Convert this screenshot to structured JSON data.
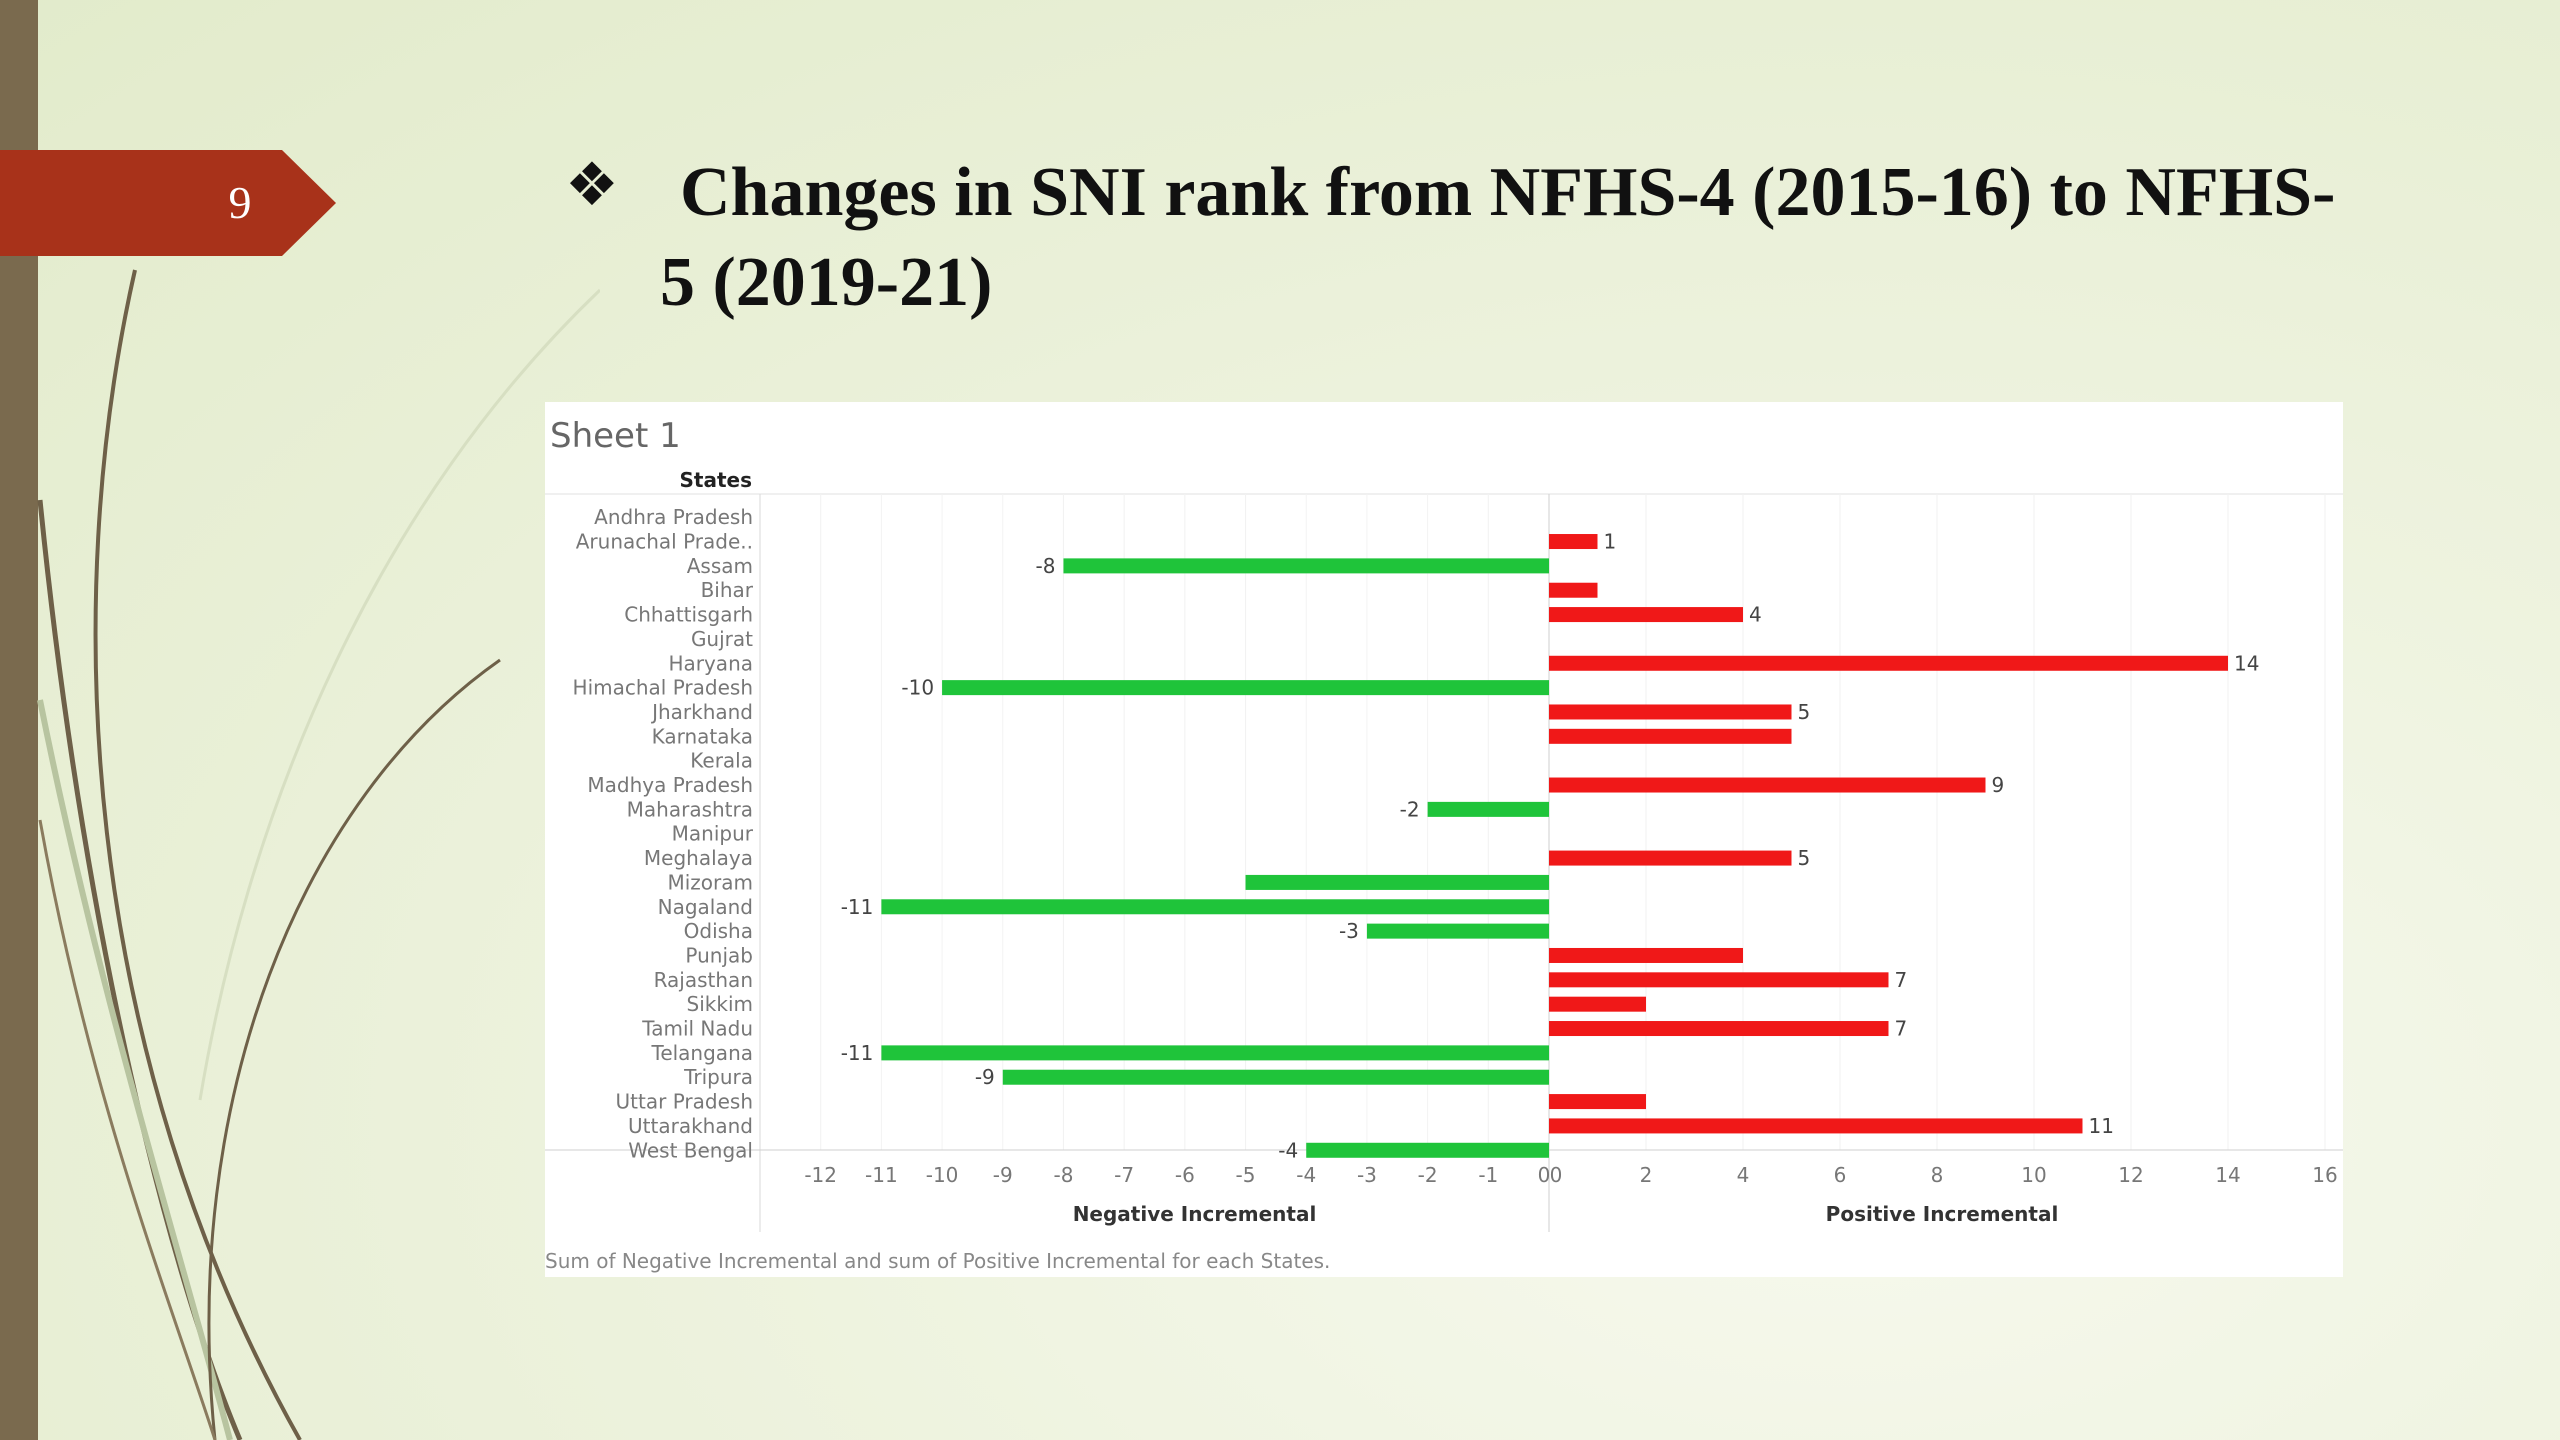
{
  "slide": {
    "page_number": "9",
    "bullet_icon": "four-diamond-bullet-icon",
    "bullet_glyph": "❖",
    "title": "Changes in SNI rank from NFHS-4 (2015-16) to NFHS-5 (2019-21)",
    "colors": {
      "badge": "#a8321a",
      "left_bar": "#7a6a4e"
    }
  },
  "chart_data": {
    "type": "bar",
    "orientation": "horizontal",
    "sheet_title": "Sheet 1",
    "row_header": "States",
    "caption": "Sum of Negative Incremental and sum of Positive Incremental for each States.",
    "categories": [
      "Andhra Pradesh",
      "Arunachal Prade..",
      "Assam",
      "Bihar",
      "Chhattisgarh",
      "Gujrat",
      "Haryana",
      "Himachal Pradesh",
      "Jharkhand",
      "Karnataka",
      "Kerala",
      "Madhya Pradesh",
      "Maharashtra",
      "Manipur",
      "Meghalaya",
      "Mizoram",
      "Nagaland",
      "Odisha",
      "Punjab",
      "Rajasthan",
      "Sikkim",
      "Tamil Nadu",
      "Telangana",
      "Tripura",
      "Uttar Pradesh",
      "Uttarakhand",
      "West Bengal"
    ],
    "panels": [
      {
        "name": "Negative Incremental",
        "xlabel": "Negative Incremental",
        "xlim": [
          -13,
          0
        ],
        "ticks": [
          "-12",
          "-11",
          "-10",
          "-9",
          "-8",
          "-7",
          "-6",
          "-5",
          "-4",
          "-3",
          "-2",
          "-1",
          "0"
        ],
        "color": "#1fc43a",
        "values": [
          null,
          null,
          -8,
          null,
          null,
          null,
          null,
          -10,
          null,
          null,
          null,
          null,
          -2,
          null,
          null,
          -5,
          -11,
          -3,
          null,
          null,
          null,
          null,
          -11,
          -9,
          null,
          null,
          -4
        ],
        "labeled": [
          false,
          false,
          true,
          false,
          false,
          false,
          false,
          true,
          false,
          false,
          false,
          false,
          true,
          false,
          false,
          false,
          true,
          true,
          false,
          false,
          false,
          false,
          true,
          true,
          false,
          false,
          true
        ]
      },
      {
        "name": "Positive Incremental",
        "xlabel": "Positive Incremental",
        "xlim": [
          0,
          16
        ],
        "ticks": [
          "0",
          "2",
          "4",
          "6",
          "8",
          "10",
          "12",
          "14",
          "16"
        ],
        "color": "#f01818",
        "values": [
          null,
          1,
          null,
          1,
          4,
          null,
          14,
          null,
          5,
          5,
          null,
          9,
          null,
          null,
          5,
          null,
          null,
          null,
          4,
          7,
          2,
          7,
          null,
          null,
          2,
          11,
          null
        ],
        "labeled": [
          false,
          true,
          false,
          false,
          true,
          false,
          true,
          false,
          true,
          false,
          false,
          true,
          false,
          false,
          true,
          false,
          false,
          false,
          false,
          true,
          false,
          true,
          false,
          false,
          false,
          true,
          false
        ]
      }
    ]
  }
}
